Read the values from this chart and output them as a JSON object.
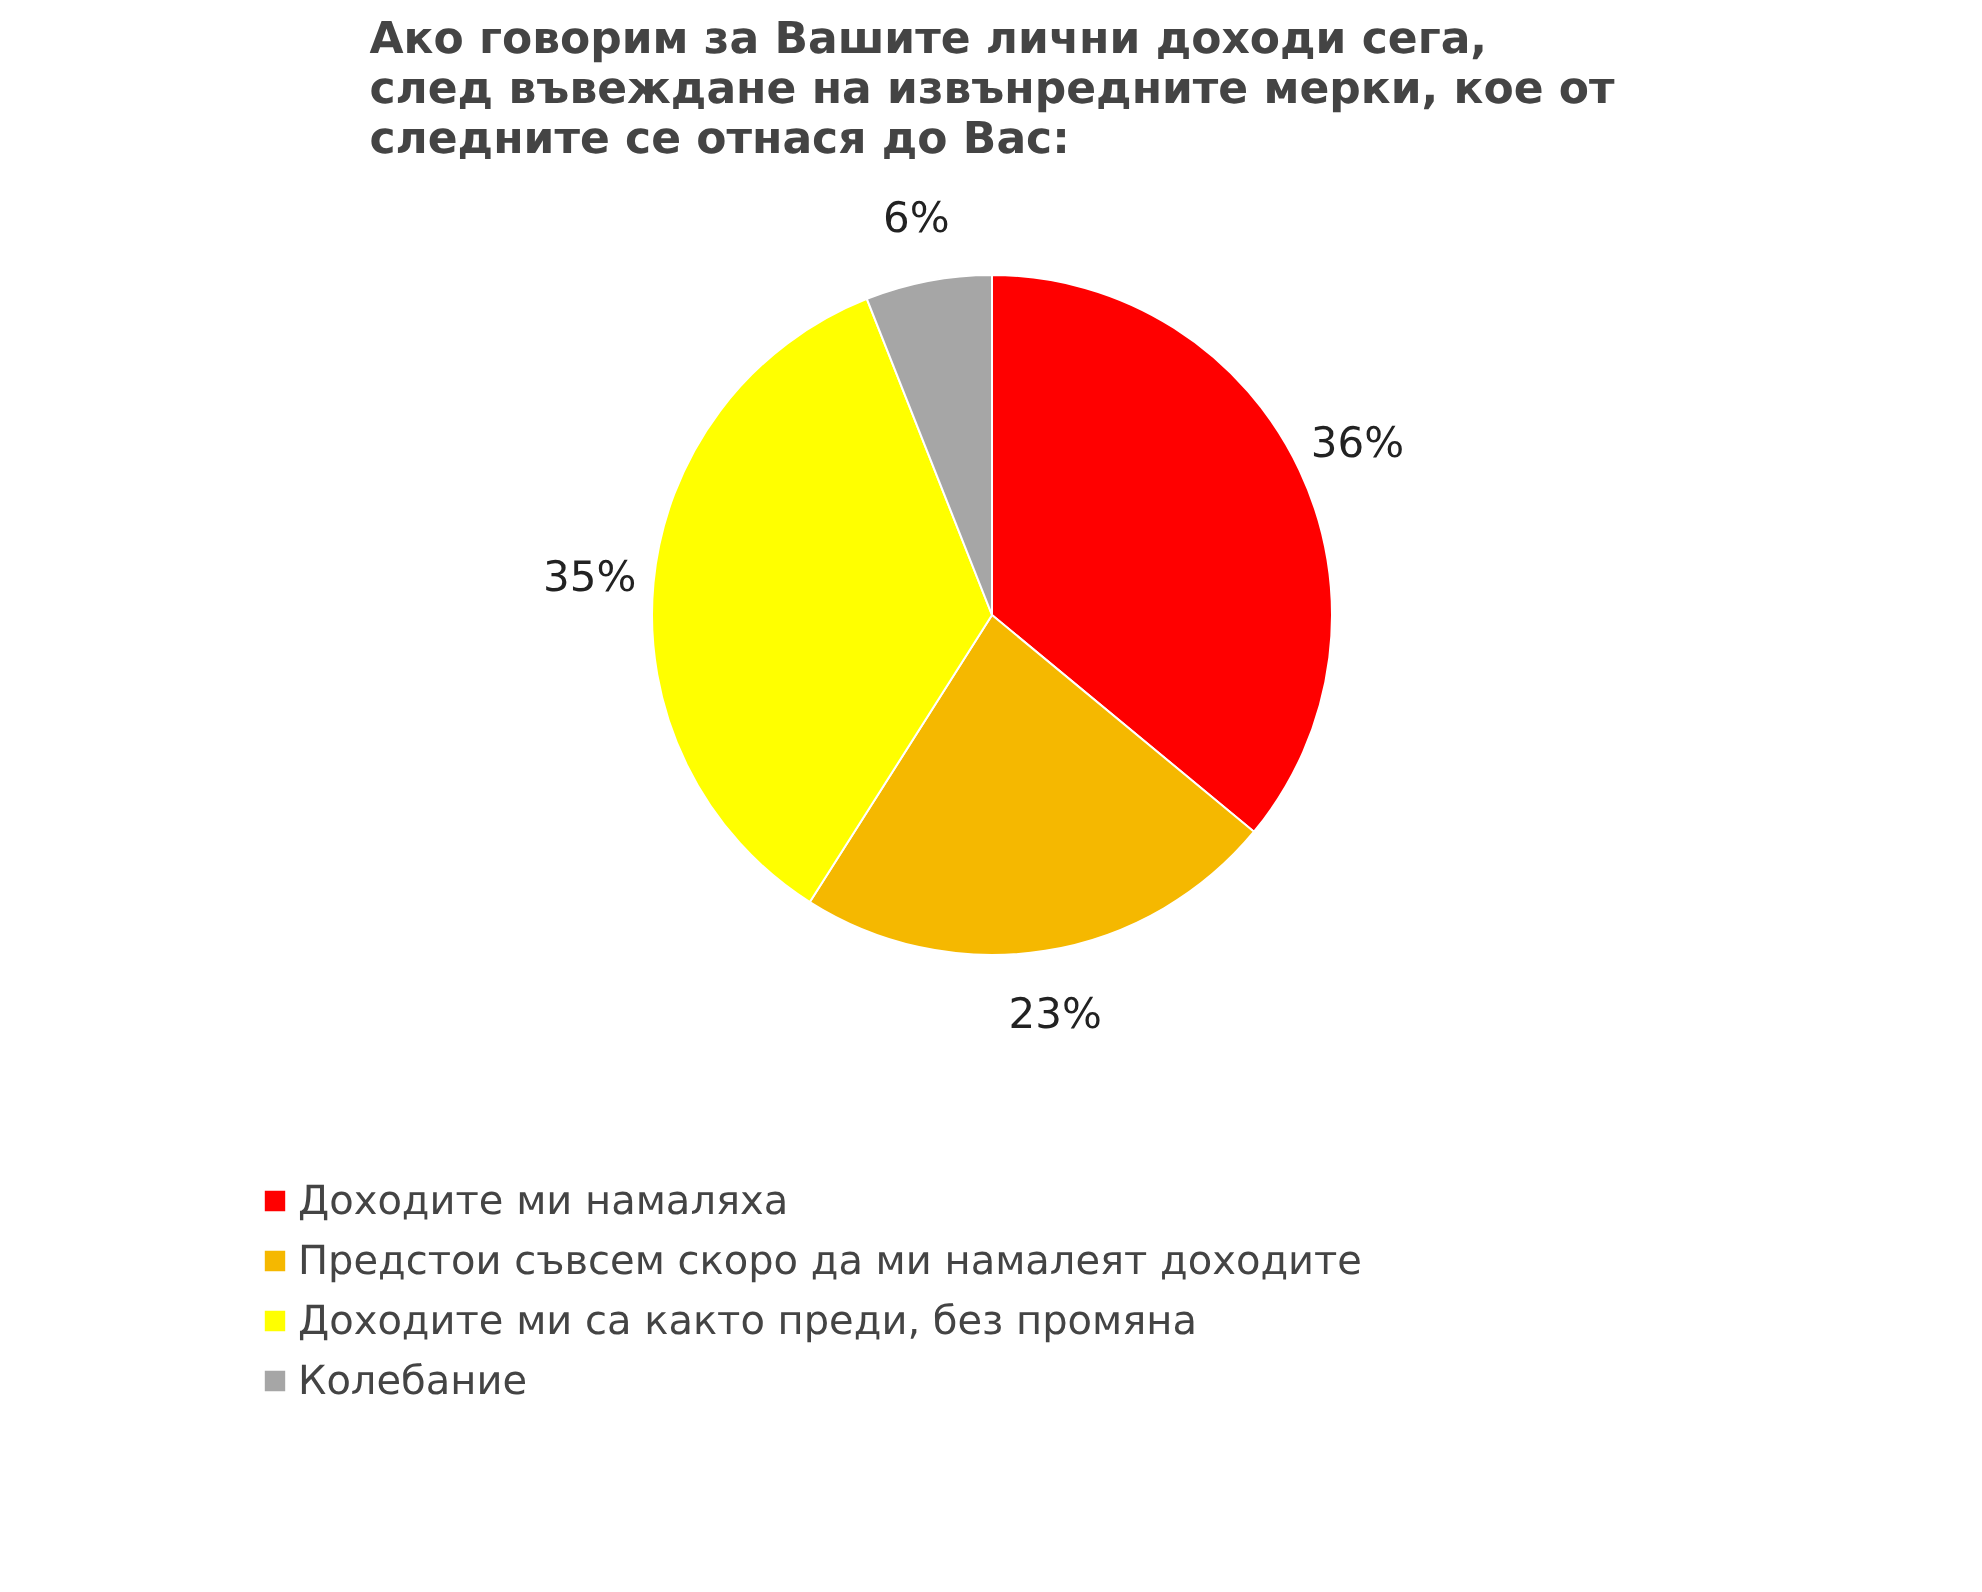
{
  "chart_data": {
    "type": "pie",
    "title": "Ако говорим за Вашите лични доходи сега, след въвеждане на извънредните мерки, кое от следните се отнася до Вас:",
    "categories": [
      "Доходите ми намаляха",
      "Предстои съвсем скоро да ми намалеят доходите",
      "Доходите ми са както преди, без промяна",
      "Колебание"
    ],
    "values": [
      36,
      23,
      35,
      6
    ],
    "colors": [
      "#ff0000",
      "#f5b800",
      "#ffff00",
      "#a6a6a6"
    ],
    "value_labels": [
      "36%",
      "23%",
      "35%",
      "6%"
    ],
    "legend": "bottom"
  }
}
